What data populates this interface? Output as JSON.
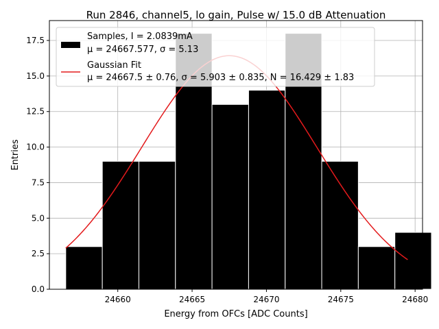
{
  "chart_data": {
    "type": "bar",
    "title": "Run 2846, channel5, lo gain, Pulse w/ 15.0 dB Attenuation",
    "xlabel": "Energy from OFCs [ADC Counts]",
    "ylabel": "Entries",
    "xlim": [
      24655.4,
      24680.5
    ],
    "ylim": [
      0,
      18.9
    ],
    "xticks": [
      24660,
      24665,
      24670,
      24675,
      24680
    ],
    "xtick_labels": [
      "24660",
      "24665",
      "24670",
      "24675",
      "24680"
    ],
    "yticks": [
      0,
      2.5,
      5,
      7.5,
      10,
      12.5,
      15,
      17.5
    ],
    "ytick_labels": [
      "0.0",
      "2.5",
      "5.0",
      "7.5",
      "10.0",
      "12.5",
      "15.0",
      "17.5"
    ],
    "grid": true,
    "legend_position": "upper-left",
    "histogram": {
      "bin_edges": [
        24656.5,
        24658.96,
        24661.42,
        24663.88,
        24666.34,
        24668.8,
        24671.26,
        24673.72,
        24676.18,
        24678.64,
        24681.1
      ],
      "counts": [
        3,
        9,
        9,
        18,
        13,
        14,
        18,
        9,
        3,
        4
      ],
      "color": "#000000",
      "edge_color": "#ffffff"
    },
    "fit": {
      "mu": 24667.5,
      "sigma": 5.903,
      "amplitude": 16.429,
      "x_range": [
        24656.5,
        24679.5
      ],
      "color": "#e31a1c"
    },
    "legend": [
      {
        "kind": "patch",
        "color": "#000000",
        "line1": "Samples, I = 2.0839mA",
        "line2": "μ = 24667.577, σ = 5.13"
      },
      {
        "kind": "line",
        "color": "#e31a1c",
        "line1": "Gaussian Fit",
        "line2": "μ = 24667.5 ± 0.76, σ = 5.903 ± 0.835, N = 16.429 ± 1.83"
      }
    ]
  }
}
